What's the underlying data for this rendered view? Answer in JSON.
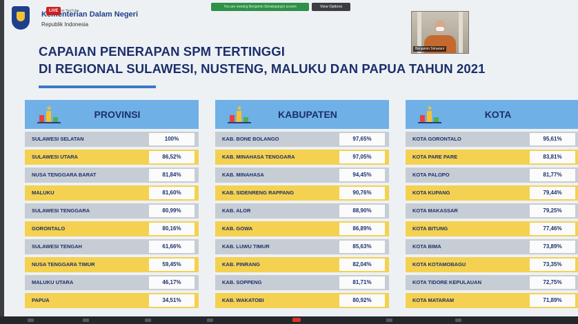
{
  "header": {
    "org_name": "Kementerian Dalam Negeri",
    "org_sub": "Republik Indonesia",
    "live_label": "LIVE",
    "live_sub": "on YouTube",
    "share_bar_text": "You are viewing Benjamin Simatupang's screen",
    "view_options_label": "View Options",
    "video_name": "Benjamin Simarani"
  },
  "title": {
    "line1": "CAPAIAN PENERAPAN SPM TERTINGGI",
    "line2": "DI REGIONAL SULAWESI, NUSTENG, MALUKU DAN PAPUA TAHUN 2021"
  },
  "colors": {
    "header_blue": "#6fb0e6",
    "row_grey": "#c7cdd4",
    "row_yellow": "#f4d150",
    "title_navy": "#1b2f6b"
  },
  "icons": [
    "podium-icon",
    "star-icon"
  ],
  "panels": [
    {
      "title": "PROVINSI",
      "rows": [
        {
          "name": "SULAWESI SELATAN",
          "value": "100%"
        },
        {
          "name": "SULAWESI UTARA",
          "value": "86,52%"
        },
        {
          "name": "NUSA TENGGARA BARAT",
          "value": "81,84%"
        },
        {
          "name": "MALUKU",
          "value": "81,60%"
        },
        {
          "name": "SULAWESI TENGGARA",
          "value": "80,99%"
        },
        {
          "name": "GORONTALO",
          "value": "80,16%"
        },
        {
          "name": "SULAWESI TENGAH",
          "value": "61,66%"
        },
        {
          "name": "NUSA TENGGARA TIMUR",
          "value": "59,45%"
        },
        {
          "name": "MALUKU UTARA",
          "value": "46,17%"
        },
        {
          "name": "PAPUA",
          "value": "34,51%"
        }
      ]
    },
    {
      "title": "KABUPATEN",
      "rows": [
        {
          "name": "KAB. BONE BOLANGO",
          "value": "97,65%"
        },
        {
          "name": "KAB. MINAHASA TENGGARA",
          "value": "97,05%"
        },
        {
          "name": "KAB. MINAHASA",
          "value": "94,45%"
        },
        {
          "name": "KAB. SIDENRENG RAPPANG",
          "value": "90,76%"
        },
        {
          "name": "KAB. ALOR",
          "value": "88,90%"
        },
        {
          "name": "KAB. GOWA",
          "value": "86,89%"
        },
        {
          "name": "KAB. LUWU TIMUR",
          "value": "85,63%"
        },
        {
          "name": "KAB. PINRANG",
          "value": "82,04%"
        },
        {
          "name": "KAB. SOPPENG",
          "value": "81,71%"
        },
        {
          "name": "KAB. WAKATOBI",
          "value": "80,92%"
        }
      ]
    },
    {
      "title": "KOTA",
      "rows": [
        {
          "name": "KOTA GORONTALO",
          "value": "95,61%"
        },
        {
          "name": "KOTA PARE PARE",
          "value": "83,81%"
        },
        {
          "name": "KOTA PALOPO",
          "value": "81,77%"
        },
        {
          "name": "KOTA KUPANG",
          "value": "79,44%"
        },
        {
          "name": "KOTA MAKASSAR",
          "value": "79,25%"
        },
        {
          "name": "KOTA BITUNG",
          "value": "77,46%"
        },
        {
          "name": "KOTA BIMA",
          "value": "73,89%"
        },
        {
          "name": "KOTA KOTAMOBAGU",
          "value": "73,35%"
        },
        {
          "name": "KOTA TIDORE KEPULAUAN",
          "value": "72,75%"
        },
        {
          "name": "KOTA MATARAM",
          "value": "71,89%"
        }
      ]
    }
  ]
}
